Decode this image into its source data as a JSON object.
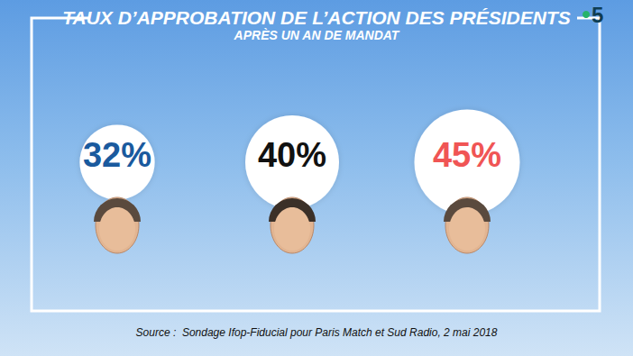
{
  "chart_data": {
    "type": "bubble",
    "title": "TAUX D’APPROBATION DE L’ACTION DES PRÉSIDENTS",
    "subtitle": "APRÈS UN AN DE MANDAT",
    "categories": [
      null,
      null,
      null
    ],
    "values": [
      32,
      40,
      45
    ],
    "value_labels": [
      "32%",
      "40%",
      "45%"
    ],
    "colors": [
      "#1a5a9e",
      "#111111",
      "#f05555"
    ],
    "data_labels": true,
    "tick_labels": false,
    "source": "Source :  Sondage Ifop-Fiducial pour Paris Match et Sud Radio, 2 mai 2018",
    "annotations": [
      "5"
    ]
  }
}
